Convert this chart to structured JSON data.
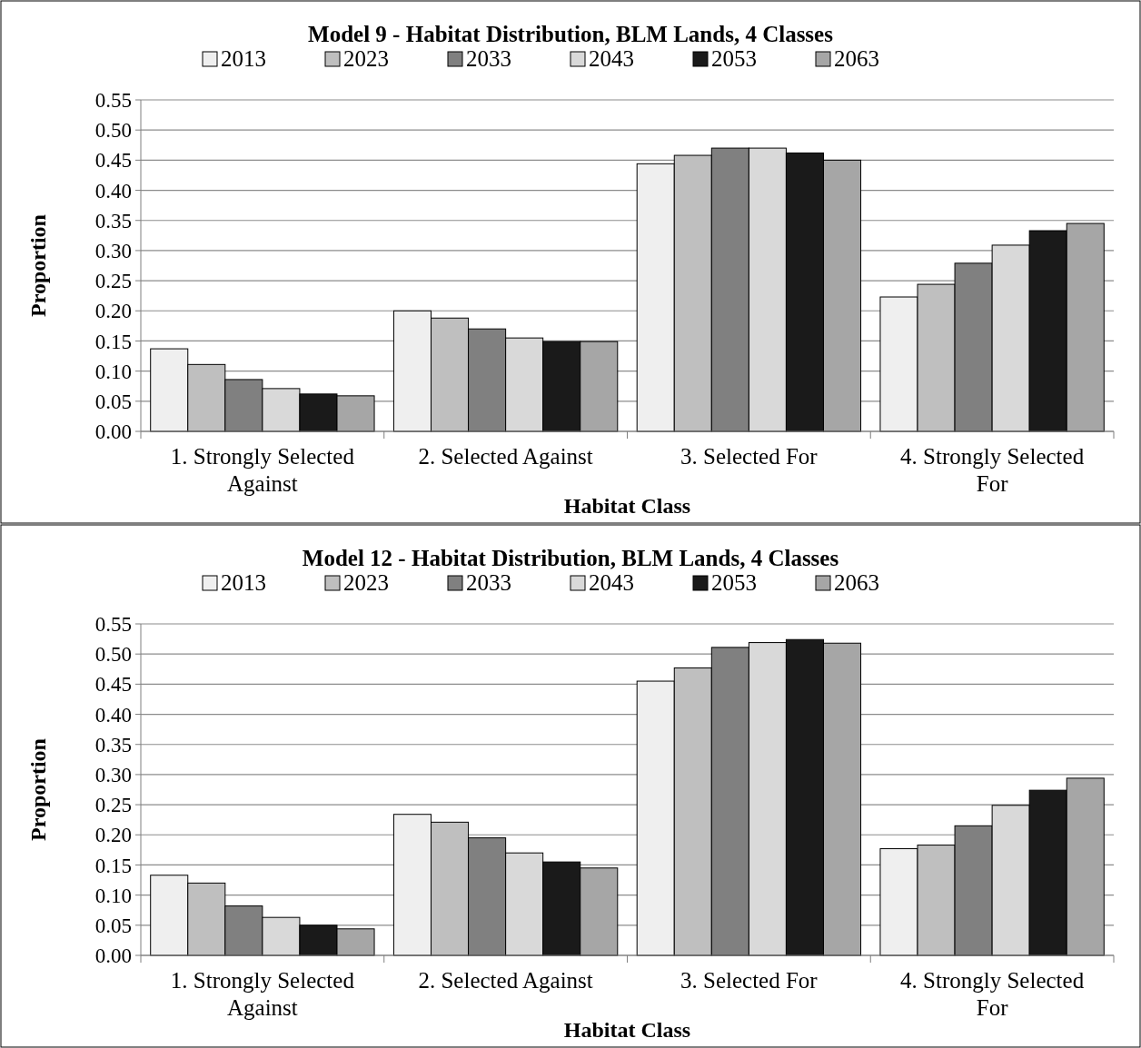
{
  "chart_data": [
    {
      "type": "bar",
      "title": "Model 9 - Habitat Distribution, BLM Lands, 4 Classes",
      "xlabel": "Habitat Class",
      "ylabel": "Proportion",
      "categories": [
        "1. Strongly Selected Against",
        "2. Selected Against",
        "3. Selected For",
        "4. Strongly Selected For"
      ],
      "series": [
        {
          "name": "2013",
          "color": "#efefef",
          "values": [
            0.137,
            0.2,
            0.444,
            0.223
          ]
        },
        {
          "name": "2023",
          "color": "#bfbfbf",
          "values": [
            0.111,
            0.188,
            0.458,
            0.244
          ]
        },
        {
          "name": "2033",
          "color": "#808080",
          "values": [
            0.086,
            0.17,
            0.47,
            0.279
          ]
        },
        {
          "name": "2043",
          "color": "#d9d9d9",
          "values": [
            0.071,
            0.155,
            0.47,
            0.309
          ]
        },
        {
          "name": "2053",
          "color": "#1a1a1a",
          "values": [
            0.062,
            0.149,
            0.462,
            0.333
          ]
        },
        {
          "name": "2063",
          "color": "#a6a6a6",
          "values": [
            0.059,
            0.149,
            0.45,
            0.345
          ]
        }
      ],
      "ylim": [
        0,
        0.55
      ],
      "yticks": [
        {
          "value": 0,
          "label": "0.00"
        },
        {
          "value": 0.05,
          "label": "0.05"
        },
        {
          "value": 0.1,
          "label": "0.10"
        },
        {
          "value": 0.15,
          "label": "0.15"
        },
        {
          "value": 0.2,
          "label": "0.20"
        },
        {
          "value": 0.25,
          "label": "0.25"
        },
        {
          "value": 0.3,
          "label": "0.30"
        },
        {
          "value": 0.35,
          "label": "0.35"
        },
        {
          "value": 0.4,
          "label": "0.40"
        },
        {
          "value": 0.45,
          "label": "0.45"
        },
        {
          "value": 0.5,
          "label": "0.50"
        },
        {
          "value": 0.55,
          "label": "0.55"
        }
      ],
      "grid": "y",
      "legend": "top"
    },
    {
      "type": "bar",
      "title": "Model 12 - Habitat Distribution, BLM Lands, 4 Classes",
      "xlabel": "Habitat Class",
      "ylabel": "Proportion",
      "categories": [
        "1. Strongly Selected Against",
        "2. Selected Against",
        "3. Selected For",
        "4. Strongly Selected For"
      ],
      "series": [
        {
          "name": "2013",
          "color": "#efefef",
          "values": [
            0.133,
            0.234,
            0.455,
            0.177
          ]
        },
        {
          "name": "2023",
          "color": "#bfbfbf",
          "values": [
            0.12,
            0.221,
            0.477,
            0.183
          ]
        },
        {
          "name": "2033",
          "color": "#808080",
          "values": [
            0.082,
            0.195,
            0.511,
            0.215
          ]
        },
        {
          "name": "2043",
          "color": "#d9d9d9",
          "values": [
            0.063,
            0.17,
            0.519,
            0.249
          ]
        },
        {
          "name": "2053",
          "color": "#1a1a1a",
          "values": [
            0.05,
            0.155,
            0.524,
            0.274
          ]
        },
        {
          "name": "2063",
          "color": "#a6a6a6",
          "values": [
            0.044,
            0.145,
            0.518,
            0.294
          ]
        }
      ],
      "ylim": [
        0,
        0.55
      ],
      "yticks": [
        {
          "value": 0,
          "label": "0.00"
        },
        {
          "value": 0.05,
          "label": "0.05"
        },
        {
          "value": 0.1,
          "label": "0.10"
        },
        {
          "value": 0.15,
          "label": "0.15"
        },
        {
          "value": 0.2,
          "label": "0.20"
        },
        {
          "value": 0.25,
          "label": "0.25"
        },
        {
          "value": 0.3,
          "label": "0.30"
        },
        {
          "value": 0.35,
          "label": "0.35"
        },
        {
          "value": 0.4,
          "label": "0.40"
        },
        {
          "value": 0.45,
          "label": "0.45"
        },
        {
          "value": 0.5,
          "label": "0.50"
        },
        {
          "value": 0.55,
          "label": "0.55"
        }
      ],
      "grid": "y",
      "legend": "top"
    }
  ]
}
